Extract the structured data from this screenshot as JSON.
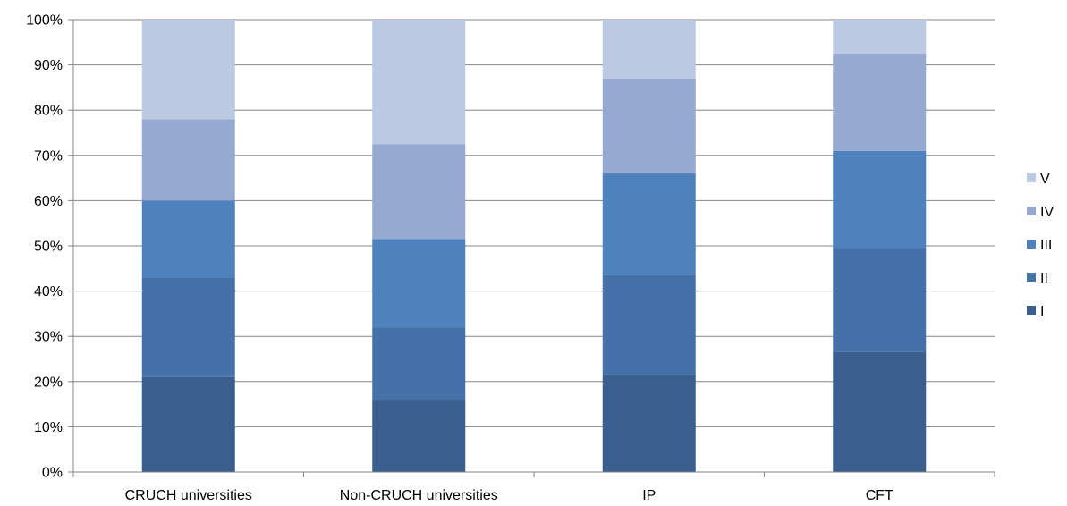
{
  "chart_data": {
    "type": "bar",
    "stacked": "percent",
    "title": "",
    "xlabel": "",
    "ylabel": "",
    "ylim": [
      0,
      100
    ],
    "yticks": [
      "0%",
      "10%",
      "20%",
      "30%",
      "40%",
      "50%",
      "60%",
      "70%",
      "80%",
      "90%",
      "100%"
    ],
    "categories": [
      "CRUCH universities",
      "Non-CRUCH universities",
      "IP",
      "CFT"
    ],
    "series": [
      {
        "name": "I",
        "values": [
          21,
          16,
          21.5,
          26.5
        ]
      },
      {
        "name": "II",
        "values": [
          22,
          16,
          22,
          23
        ]
      },
      {
        "name": "III",
        "values": [
          17,
          19.5,
          22.5,
          21.5
        ]
      },
      {
        "name": "IV",
        "values": [
          18,
          21,
          21,
          21.5
        ]
      },
      {
        "name": "V",
        "values": [
          22,
          27.5,
          13,
          7.5
        ]
      }
    ],
    "colors": [
      "#3a5f8f",
      "#4472a8",
      "#4f81bd",
      "#95a9d1",
      "#bcc9e2"
    ],
    "grid": true,
    "legend": "right"
  }
}
